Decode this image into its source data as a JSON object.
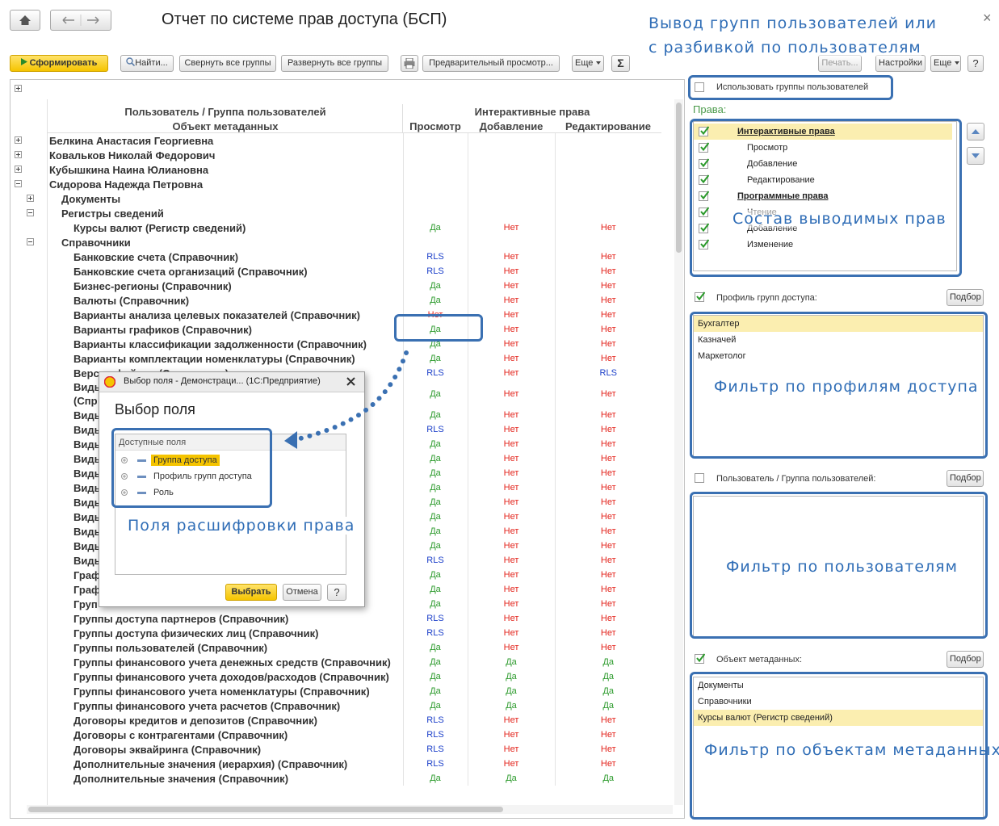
{
  "header": {
    "title": "Отчет по системе прав доступа (БСП)",
    "close": "×"
  },
  "toolbar": {
    "generate": "Сформировать",
    "find": "Найти...",
    "collapse_all": "Свернуть все группы",
    "expand_all": "Развернуть все группы",
    "preview": "Предварительный просмотр...",
    "more": "Еще",
    "sum": "Σ",
    "print": "Печать...",
    "settings": "Настройки",
    "more_right": "Еще",
    "help": "?"
  },
  "report": {
    "columns": {
      "user_group": "Пользователь / Группа пользователей",
      "metadata_object": "Объект метаданных",
      "interactive_rights": "Интерактивные права",
      "view": "Просмотр",
      "add": "Добавление",
      "edit": "Редактирование"
    },
    "value_colors": {
      "Да": "#2b9a2b",
      "Нет": "#e3231b",
      "RLS": "#1b3fc9"
    },
    "rows": [
      {
        "label": "Белкина Анастасия Георгиевна",
        "collapsed": true
      },
      {
        "label": "Ковальков Николай Федорович",
        "collapsed": true
      },
      {
        "label": "Кубышкина Наина Юлиановна",
        "collapsed": true
      },
      {
        "label": "Сидорова Надежда Петровна",
        "children": [
          {
            "label": "Документы",
            "collapsed": true
          },
          {
            "label": "Регистры сведений",
            "children": [
              {
                "label": "Курсы валют (Регистр сведений)",
                "values": [
                  "Да",
                  "Нет",
                  "Нет"
                ]
              }
            ]
          },
          {
            "label": "Справочники",
            "children": [
              {
                "label": "Банковские счета (Справочник)",
                "values": [
                  "RLS",
                  "Нет",
                  "Нет"
                ]
              },
              {
                "label": "Банковские счета организаций (Справочник)",
                "values": [
                  "RLS",
                  "Нет",
                  "Нет"
                ]
              },
              {
                "label": "Бизнес-регионы (Справочник)",
                "values": [
                  "Да",
                  "Нет",
                  "Нет"
                ]
              },
              {
                "label": "Валюты (Справочник)",
                "values": [
                  "Да",
                  "Нет",
                  "Нет"
                ]
              },
              {
                "label": "Варианты анализа целевых показателей (Справочник)",
                "values": [
                  "Нет",
                  "Нет",
                  "Нет"
                ]
              },
              {
                "label": "Варианты графиков (Справочник)",
                "values": [
                  "Да",
                  "Нет",
                  "Нет"
                ]
              },
              {
                "label": "Варианты классификации задолженности (Справочник)",
                "values": [
                  "Да",
                  "Нет",
                  "Нет"
                ]
              },
              {
                "label": "Варианты комплектации номенклатуры (Справочник)",
                "values": [
                  "Да",
                  "Нет",
                  "Нет"
                ]
              },
              {
                "label": "Версии файлов (Справочник)",
                "values": [
                  "RLS",
                  "Нет",
                  "RLS"
                ]
              },
              {
                "label": "Виды\n(Спр",
                "values": [
                  "Да",
                  "Нет",
                  "Нет"
                ]
              },
              {
                "label": "Виды",
                "values": [
                  "Да",
                  "Нет",
                  "Нет"
                ]
              },
              {
                "label": "Виды",
                "values": [
                  "RLS",
                  "Нет",
                  "Нет"
                ]
              },
              {
                "label": "Виды",
                "values": [
                  "Да",
                  "Нет",
                  "Нет"
                ]
              },
              {
                "label": "Виды",
                "values": [
                  "Да",
                  "Нет",
                  "Нет"
                ]
              },
              {
                "label": "Виды",
                "values": [
                  "Да",
                  "Нет",
                  "Нет"
                ]
              },
              {
                "label": "Виды",
                "values": [
                  "Да",
                  "Нет",
                  "Нет"
                ]
              },
              {
                "label": "Виды",
                "values": [
                  "Да",
                  "Нет",
                  "Нет"
                ]
              },
              {
                "label": "Виды",
                "values": [
                  "Да",
                  "Нет",
                  "Нет"
                ]
              },
              {
                "label": "Виды",
                "values": [
                  "Да",
                  "Нет",
                  "Нет"
                ]
              },
              {
                "label": "Виды",
                "values": [
                  "Да",
                  "Нет",
                  "Нет"
                ]
              },
              {
                "label": "Виды",
                "values": [
                  "RLS",
                  "Нет",
                  "Нет"
                ]
              },
              {
                "label": "Граф",
                "values": [
                  "Да",
                  "Нет",
                  "Нет"
                ]
              },
              {
                "label": "Граф",
                "values": [
                  "Да",
                  "Нет",
                  "Нет"
                ]
              },
              {
                "label": "Груп",
                "values": [
                  "Да",
                  "Нет",
                  "Нет"
                ]
              },
              {
                "label": "Группы доступа партнеров (Справочник)",
                "values": [
                  "RLS",
                  "Нет",
                  "Нет"
                ]
              },
              {
                "label": "Группы доступа физических лиц (Справочник)",
                "values": [
                  "RLS",
                  "Нет",
                  "Нет"
                ]
              },
              {
                "label": "Группы пользователей (Справочник)",
                "values": [
                  "Да",
                  "Нет",
                  "Нет"
                ]
              },
              {
                "label": "Группы финансового учета денежных средств (Справочник)",
                "values": [
                  "Да",
                  "Да",
                  "Да"
                ]
              },
              {
                "label": "Группы финансового учета доходов/расходов (Справочник)",
                "values": [
                  "Да",
                  "Да",
                  "Да"
                ]
              },
              {
                "label": "Группы финансового учета номенклатуры (Справочник)",
                "values": [
                  "Да",
                  "Да",
                  "Да"
                ]
              },
              {
                "label": "Группы финансового учета расчетов (Справочник)",
                "values": [
                  "Да",
                  "Да",
                  "Да"
                ]
              },
              {
                "label": "Договоры кредитов и депозитов (Справочник)",
                "values": [
                  "RLS",
                  "Нет",
                  "Нет"
                ]
              },
              {
                "label": "Договоры с контрагентами (Справочник)",
                "values": [
                  "RLS",
                  "Нет",
                  "Нет"
                ]
              },
              {
                "label": "Договоры эквайринга (Справочник)",
                "values": [
                  "RLS",
                  "Нет",
                  "Нет"
                ]
              },
              {
                "label": "Дополнительные значения (иерархия) (Справочник)",
                "values": [
                  "RLS",
                  "Нет",
                  "Нет"
                ]
              },
              {
                "label": "Дополнительные значения (Справочник)",
                "values": [
                  "Да",
                  "Да",
                  "Да"
                ]
              }
            ]
          }
        ]
      }
    ]
  },
  "settings": {
    "use_user_groups": {
      "label": "Использовать группы пользователей",
      "checked": false
    },
    "rights_title": "Права:",
    "rights": [
      {
        "label": "Интерактивные права",
        "checked": true,
        "items": [
          {
            "label": "Просмотр",
            "checked": true
          },
          {
            "label": "Добавление",
            "checked": true
          },
          {
            "label": "Редактирование",
            "checked": true
          }
        ]
      },
      {
        "label": "Программные права",
        "checked": true,
        "items": [
          {
            "label": "Чтение",
            "checked": true
          },
          {
            "label": "Добавление",
            "checked": true
          },
          {
            "label": "Изменение",
            "checked": true
          }
        ]
      }
    ],
    "filters": [
      {
        "label": "Профиль групп доступа:",
        "checked": true,
        "pick": "Подбор",
        "items": [
          "Бухгалтер",
          "Казначей",
          "Маркетолог"
        ]
      },
      {
        "label": "Пользователь / Группа пользователей:",
        "checked": false,
        "pick": "Подбор",
        "items": []
      },
      {
        "label": "Объект метаданных:",
        "checked": true,
        "pick": "Подбор",
        "items": [
          "Документы",
          "Справочники",
          "Курсы валют (Регистр сведений)"
        ]
      }
    ]
  },
  "dialog": {
    "title": "Выбор поля - Демонстраци... (1С:Предприятие)",
    "heading": "Выбор поля",
    "fields_header": "Доступные поля",
    "fields": [
      "Группа доступа",
      "Профиль групп доступа",
      "Роль"
    ],
    "ok": "Выбрать",
    "cancel": "Отмена",
    "help": "?"
  },
  "annotations": {
    "output_groups": [
      "Вывод групп пользователей или",
      "с разбивкой по пользователям"
    ],
    "rights_set": "Состав выводимых прав",
    "profile_filter": "Фильтр по профилям доступа",
    "user_filter": "Фильтр по пользователям",
    "metadata_filter": "Фильтр по объектам метаданных",
    "field_decode": "Поля расшифровки права"
  }
}
